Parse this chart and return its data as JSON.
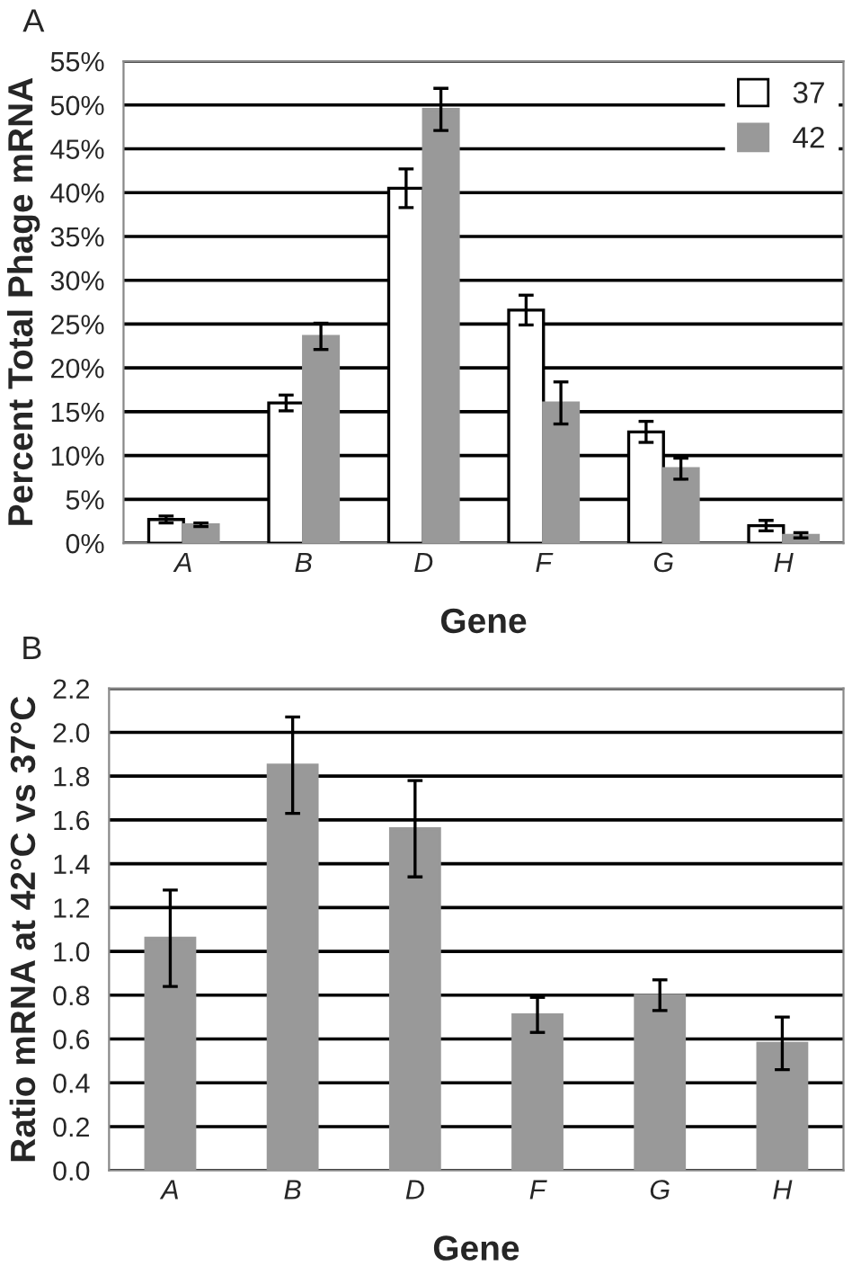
{
  "chart_data": [
    {
      "type": "bar",
      "categories": [
        "A",
        "B",
        "D",
        "F",
        "G",
        "H"
      ],
      "xlabel": "Gene",
      "ylabel": "Percent Total Phage mRNA",
      "annotations": [
        "A"
      ],
      "series": [
        {
          "name": "37",
          "color": "#ffffff",
          "values": [
            2.7,
            16.0,
            40.5,
            26.6,
            12.7,
            2.0
          ],
          "errors": [
            0.4,
            0.9,
            2.2,
            1.7,
            1.2,
            0.6
          ]
        },
        {
          "name": "42",
          "color": "#999999",
          "values": [
            2.1,
            23.6,
            49.5,
            16.0,
            8.5,
            0.9
          ],
          "errors": [
            0.2,
            1.5,
            2.4,
            2.4,
            1.2,
            0.3
          ]
        }
      ],
      "ylim": [
        0,
        55
      ],
      "yticks": [
        {
          "value": 0,
          "label": "0%"
        },
        {
          "value": 5,
          "label": "5%"
        },
        {
          "value": 10,
          "label": "10%"
        },
        {
          "value": 15,
          "label": "15%"
        },
        {
          "value": 20,
          "label": "20%"
        },
        {
          "value": 25,
          "label": "25%"
        },
        {
          "value": 30,
          "label": "30%"
        },
        {
          "value": 35,
          "label": "35%"
        },
        {
          "value": 40,
          "label": "40%"
        },
        {
          "value": 45,
          "label": "45%"
        },
        {
          "value": 50,
          "label": "50%"
        },
        {
          "value": 55,
          "label": "55%"
        }
      ],
      "grid": "y",
      "legend": "top right"
    },
    {
      "type": "bar",
      "categories": [
        "A",
        "B",
        "D",
        "F",
        "G",
        "H"
      ],
      "xlabel": "Gene",
      "ylabel": "Ratio mRNA at 42°C vs 37°C",
      "annotations": [
        "B"
      ],
      "values": [
        1.06,
        1.85,
        1.56,
        0.71,
        0.8,
        0.58
      ],
      "errors": [
        0.22,
        0.22,
        0.22,
        0.08,
        0.07,
        0.12
      ],
      "color": "#999999",
      "ylim": [
        0,
        2.2
      ],
      "yticks": [
        {
          "value": 0,
          "label": "0.0"
        },
        {
          "value": 0.2,
          "label": "0.2"
        },
        {
          "value": 0.4,
          "label": "0.4"
        },
        {
          "value": 0.6,
          "label": "0.6"
        },
        {
          "value": 0.8,
          "label": "0.8"
        },
        {
          "value": 1.0,
          "label": "1.0"
        },
        {
          "value": 1.2,
          "label": "1.2"
        },
        {
          "value": 1.4,
          "label": "1.4"
        },
        {
          "value": 1.6,
          "label": "1.6"
        },
        {
          "value": 1.8,
          "label": "1.8"
        },
        {
          "value": 2.0,
          "label": "2.0"
        },
        {
          "value": 2.2,
          "label": "2.2"
        }
      ],
      "grid": "y"
    }
  ]
}
